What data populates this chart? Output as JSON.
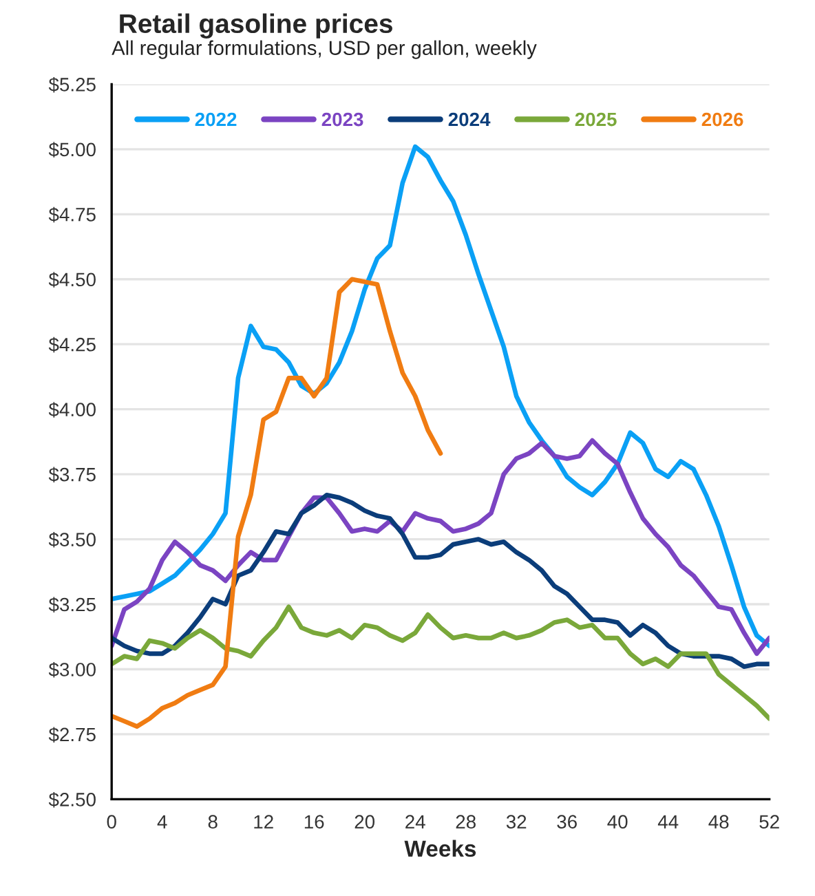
{
  "chart_data": {
    "type": "line",
    "title": "Retail gasoline prices",
    "subtitle": "All regular formulations, USD per gallon, weekly",
    "xlabel": "Weeks",
    "xlim": [
      0,
      52
    ],
    "xticks": [
      0,
      4,
      8,
      12,
      16,
      20,
      24,
      28,
      32,
      36,
      40,
      44,
      48,
      52
    ],
    "ylim": [
      2.5,
      5.25
    ],
    "yticks": [
      {
        "value": 2.5,
        "label": "$2.50"
      },
      {
        "value": 2.75,
        "label": "$2.75"
      },
      {
        "value": 3.0,
        "label": "$3.00"
      },
      {
        "value": 3.25,
        "label": "$3.25"
      },
      {
        "value": 3.5,
        "label": "$3.50"
      },
      {
        "value": 3.75,
        "label": "$3.75"
      },
      {
        "value": 4.0,
        "label": "$4.00"
      },
      {
        "value": 4.25,
        "label": "$4.25"
      },
      {
        "value": 4.5,
        "label": "$4.50"
      },
      {
        "value": 4.75,
        "label": "$4.75"
      },
      {
        "value": 5.0,
        "label": "$5.00"
      },
      {
        "value": 5.25,
        "label": "$5.25"
      }
    ],
    "grid": "y",
    "legend": "top",
    "marker": "none",
    "line_style": "solid",
    "x": [
      0,
      1,
      2,
      3,
      4,
      5,
      6,
      7,
      8,
      9,
      10,
      11,
      12,
      13,
      14,
      15,
      16,
      17,
      18,
      19,
      20,
      21,
      22,
      23,
      24,
      25,
      26,
      27,
      28,
      29,
      30,
      31,
      32,
      33,
      34,
      35,
      36,
      37,
      38,
      39,
      40,
      41,
      42,
      43,
      44,
      45,
      46,
      47,
      48,
      49,
      50,
      51,
      52
    ],
    "series": [
      {
        "name": "2022",
        "color": "#0aa0f5",
        "values": [
          3.27,
          3.28,
          3.29,
          3.3,
          3.33,
          3.36,
          3.41,
          3.46,
          3.52,
          3.6,
          4.12,
          4.32,
          4.24,
          4.23,
          4.18,
          4.09,
          4.06,
          4.1,
          4.18,
          4.3,
          4.46,
          4.58,
          4.63,
          4.87,
          5.01,
          4.97,
          4.88,
          4.8,
          4.67,
          4.52,
          4.38,
          4.24,
          4.05,
          3.95,
          3.88,
          3.82,
          3.74,
          3.7,
          3.67,
          3.72,
          3.79,
          3.91,
          3.87,
          3.77,
          3.74,
          3.8,
          3.77,
          3.67,
          3.55,
          3.4,
          3.24,
          3.13,
          3.09
        ]
      },
      {
        "name": "2023",
        "color": "#7b44c2",
        "values": [
          3.09,
          3.23,
          3.26,
          3.31,
          3.42,
          3.49,
          3.45,
          3.4,
          3.38,
          3.34,
          3.4,
          3.45,
          3.42,
          3.42,
          3.51,
          3.6,
          3.66,
          3.66,
          3.6,
          3.53,
          3.54,
          3.53,
          3.57,
          3.53,
          3.6,
          3.58,
          3.57,
          3.53,
          3.54,
          3.56,
          3.6,
          3.75,
          3.81,
          3.83,
          3.87,
          3.82,
          3.81,
          3.82,
          3.88,
          3.83,
          3.79,
          3.68,
          3.58,
          3.52,
          3.47,
          3.4,
          3.36,
          3.3,
          3.24,
          3.23,
          3.14,
          3.06,
          3.12
        ]
      },
      {
        "name": "2024",
        "color": "#0b3d7a",
        "values": [
          3.12,
          3.09,
          3.07,
          3.06,
          3.06,
          3.09,
          3.14,
          3.2,
          3.27,
          3.25,
          3.36,
          3.38,
          3.45,
          3.53,
          3.52,
          3.6,
          3.63,
          3.67,
          3.66,
          3.64,
          3.61,
          3.59,
          3.58,
          3.52,
          3.43,
          3.43,
          3.44,
          3.48,
          3.49,
          3.5,
          3.48,
          3.49,
          3.45,
          3.42,
          3.38,
          3.32,
          3.29,
          3.24,
          3.19,
          3.19,
          3.18,
          3.13,
          3.17,
          3.14,
          3.09,
          3.06,
          3.05,
          3.05,
          3.05,
          3.04,
          3.01,
          3.02,
          3.02
        ]
      },
      {
        "name": "2025",
        "color": "#7aa83a",
        "values": [
          3.02,
          3.05,
          3.04,
          3.11,
          3.1,
          3.08,
          3.12,
          3.15,
          3.12,
          3.08,
          3.07,
          3.05,
          3.11,
          3.16,
          3.24,
          3.16,
          3.14,
          3.13,
          3.15,
          3.12,
          3.17,
          3.16,
          3.13,
          3.11,
          3.14,
          3.21,
          3.16,
          3.12,
          3.13,
          3.12,
          3.12,
          3.14,
          3.12,
          3.13,
          3.15,
          3.18,
          3.19,
          3.16,
          3.17,
          3.12,
          3.12,
          3.06,
          3.02,
          3.04,
          3.01,
          3.06,
          3.06,
          3.06,
          2.98,
          2.94,
          2.9,
          2.86,
          2.81
        ]
      },
      {
        "name": "2026",
        "color": "#f07c12",
        "values": [
          2.82,
          2.8,
          2.78,
          2.81,
          2.85,
          2.87,
          2.9,
          2.92,
          2.94,
          3.01,
          3.51,
          3.67,
          3.96,
          3.99,
          4.12,
          4.12,
          4.05,
          4.12,
          4.45,
          4.5,
          4.49,
          4.48,
          4.3,
          4.14,
          4.05,
          3.92,
          3.83,
          null,
          null,
          null,
          null,
          null,
          null,
          null,
          null,
          null,
          null,
          null,
          null,
          null,
          null,
          null,
          null,
          null,
          null,
          null,
          null,
          null,
          null,
          null,
          null,
          null,
          null
        ]
      }
    ]
  }
}
